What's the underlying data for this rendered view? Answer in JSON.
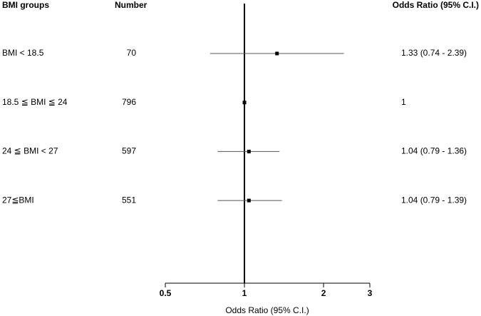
{
  "chart_data": {
    "type": "forest",
    "columns": [
      "BMI groups",
      "Number",
      "Odds Ratio (95% C.I.)"
    ],
    "categories": [
      "BMI < 18.5",
      "18.5 ≦ BMI ≦ 24",
      "24 ≦ BMI < 27",
      "27≦BMI"
    ],
    "counts": [
      70,
      796,
      597,
      551
    ],
    "values": [
      1.33,
      1,
      1.04,
      1.04
    ],
    "lower": [
      0.74,
      null,
      0.79,
      0.79
    ],
    "upper": [
      2.39,
      null,
      1.36,
      1.39
    ],
    "value_labels": [
      "1.33 (0.74 - 2.39)",
      "1",
      "1.04 (0.79 - 1.36)",
      "1.04 (0.79 - 1.39)"
    ],
    "xlabel": "Odds Ratio (95% C.I.)",
    "xlim": [
      0.5,
      3
    ],
    "xticks": [
      0.5,
      1,
      2,
      3
    ],
    "log_x": true,
    "reference_line": 1,
    "color": "#000000"
  }
}
